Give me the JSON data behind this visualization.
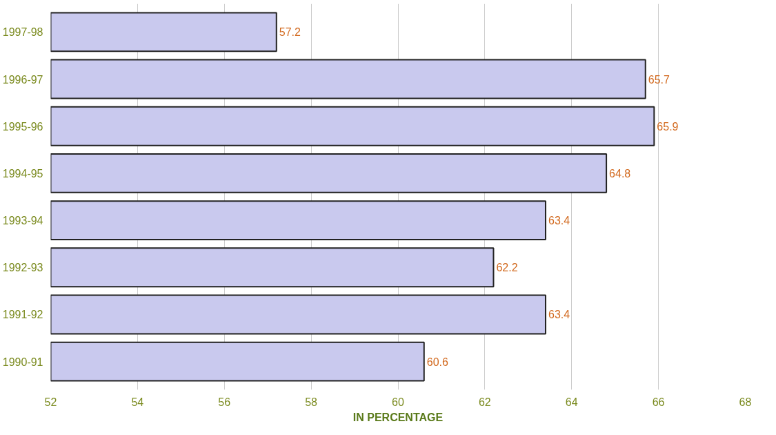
{
  "chart_data": {
    "type": "bar",
    "orientation": "horizontal",
    "xlabel": "IN PERCENTAGE",
    "categories": [
      "1997-98",
      "1996-97",
      "1995-96",
      "1994-95",
      "1993-94",
      "1992-93",
      "1991-92",
      "1990-91"
    ],
    "values": [
      57.2,
      65.7,
      65.9,
      64.8,
      63.4,
      62.2,
      63.4,
      60.6
    ],
    "color": "#c9c9ee",
    "xlim": [
      52,
      68
    ],
    "xticks": [
      52,
      54,
      56,
      58,
      60,
      62,
      64,
      66,
      68
    ],
    "grid": "x",
    "data_labels": true
  }
}
